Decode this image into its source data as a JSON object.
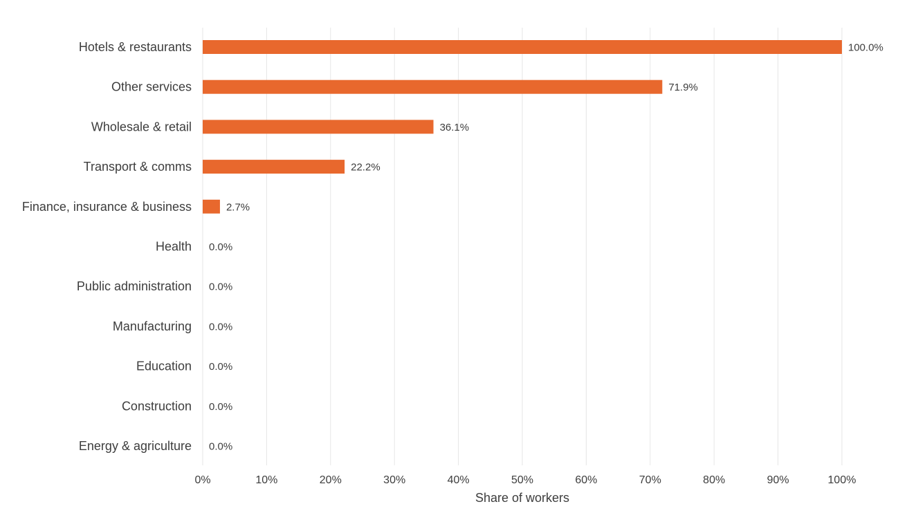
{
  "chart_data": {
    "type": "bar",
    "orientation": "horizontal",
    "categories": [
      "Hotels & restaurants",
      "Other services",
      "Wholesale & retail",
      "Transport & comms",
      "Finance, insurance & business",
      "Health",
      "Public administration",
      "Manufacturing",
      "Education",
      "Construction",
      "Energy & agriculture"
    ],
    "values": [
      100.0,
      71.9,
      36.1,
      22.2,
      2.7,
      0.0,
      0.0,
      0.0,
      0.0,
      0.0,
      0.0
    ],
    "value_labels": [
      "100.0%",
      "71.9%",
      "36.1%",
      "22.2%",
      "2.7%",
      "0.0%",
      "0.0%",
      "0.0%",
      "0.0%",
      "0.0%",
      "0.0%"
    ],
    "xlabel": "Share of workers",
    "ylabel": "",
    "title": "",
    "xlim": [
      0,
      100
    ],
    "x_ticks": [
      "0%",
      "10%",
      "20%",
      "30%",
      "40%",
      "50%",
      "60%",
      "70%",
      "80%",
      "90%",
      "100%"
    ],
    "grid": "vertical",
    "legend": "none",
    "bar_color": "#E8682D"
  }
}
